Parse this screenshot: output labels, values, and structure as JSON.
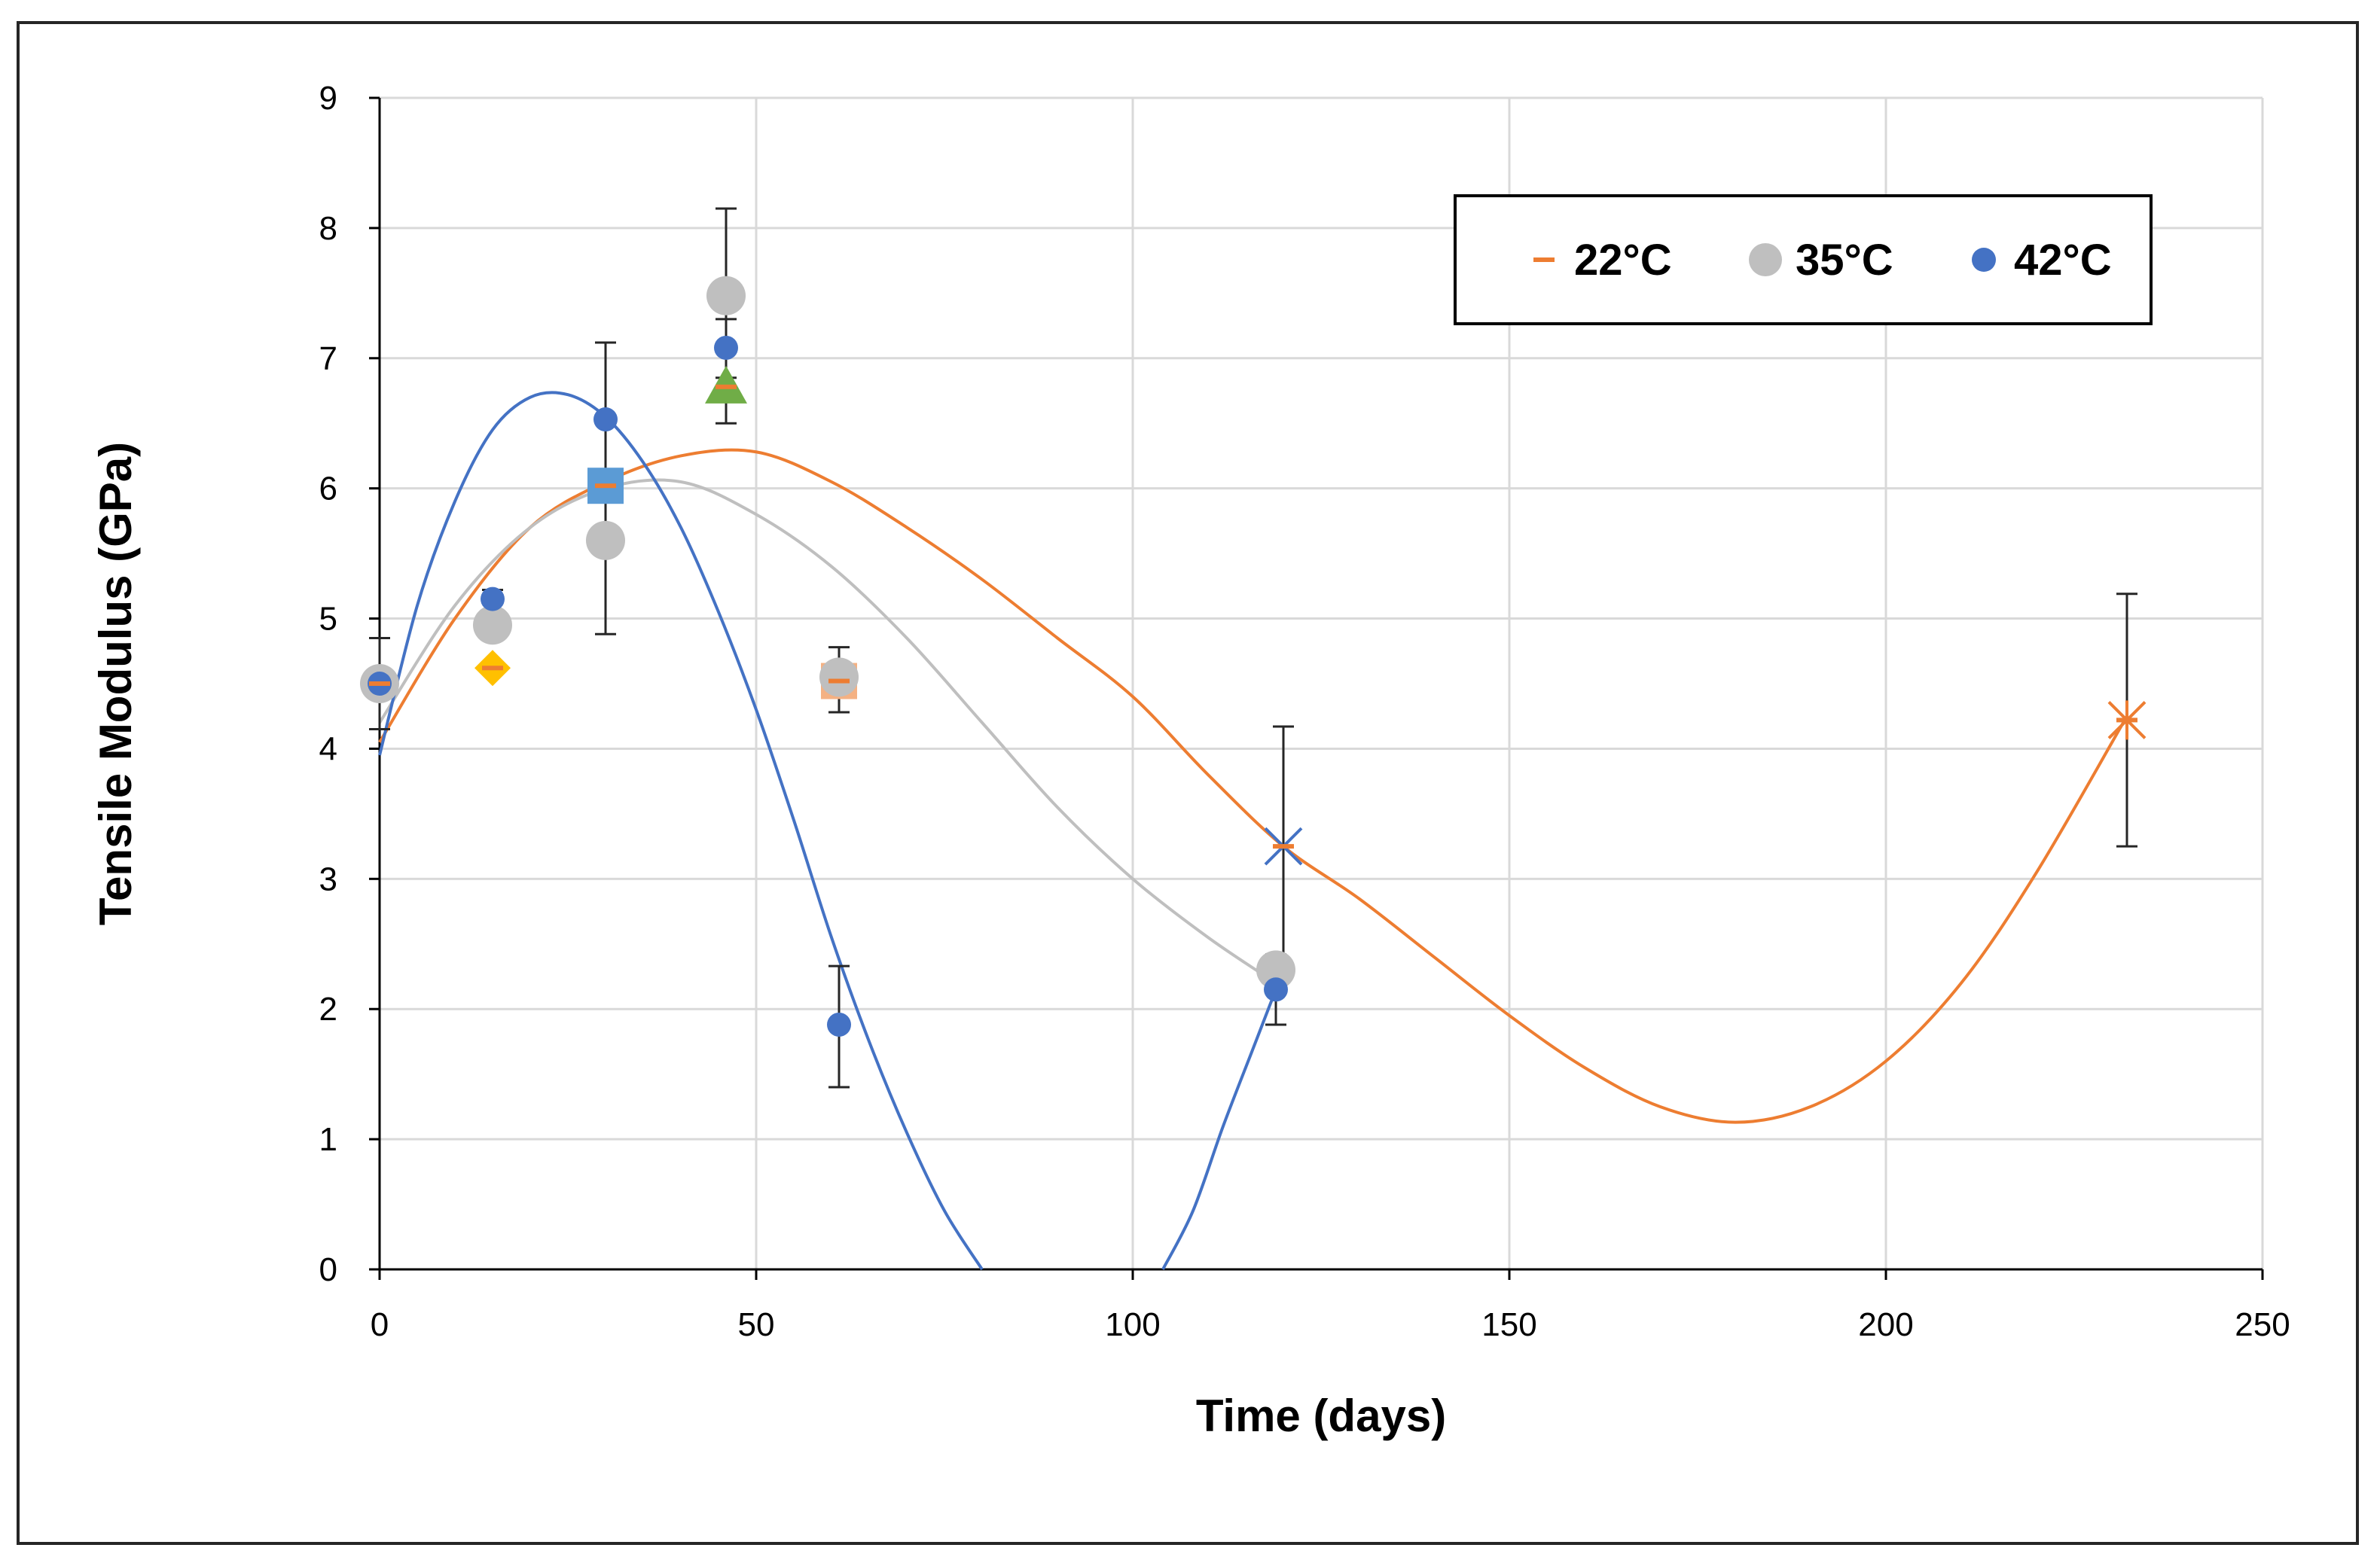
{
  "chart_data": {
    "type": "scatter",
    "title": "",
    "xlabel": "Time (days)",
    "ylabel": "Tensile Modulus (GPa)",
    "xlim": [
      0,
      250
    ],
    "ylim": [
      0,
      9
    ],
    "x_ticks": [
      0,
      50,
      100,
      150,
      200,
      250
    ],
    "y_ticks": [
      0,
      1,
      2,
      3,
      4,
      5,
      6,
      7,
      8,
      9
    ],
    "grid": true,
    "legend_position": "top-right",
    "legend": [
      {
        "label": "22°C",
        "marker": "dash",
        "color": "#ed7d31"
      },
      {
        "label": "35°C",
        "marker": "circle",
        "color": "#bfbfbf"
      },
      {
        "label": "42°C",
        "marker": "circle",
        "color": "#4472c4"
      }
    ],
    "series": [
      {
        "name": "22°C",
        "color": "#ed7d31",
        "marker": "dash",
        "points": [
          {
            "x": 0,
            "y": 4.5
          },
          {
            "x": 15,
            "y": 4.62
          },
          {
            "x": 30,
            "y": 6.02
          },
          {
            "x": 46,
            "y": 6.78
          },
          {
            "x": 61,
            "y": 4.52
          },
          {
            "x": 120,
            "y": 3.25
          },
          {
            "x": 232,
            "y": 4.22
          }
        ],
        "trendline": [
          [
            0,
            4.05
          ],
          [
            10,
            5.0
          ],
          [
            20,
            5.7
          ],
          [
            30,
            6.05
          ],
          [
            40,
            6.25
          ],
          [
            50,
            6.28
          ],
          [
            60,
            6.05
          ],
          [
            70,
            5.7
          ],
          [
            80,
            5.3
          ],
          [
            90,
            4.85
          ],
          [
            100,
            4.4
          ],
          [
            110,
            3.8
          ],
          [
            120,
            3.25
          ],
          [
            130,
            2.85
          ],
          [
            140,
            2.4
          ],
          [
            150,
            1.95
          ],
          [
            160,
            1.55
          ],
          [
            170,
            1.25
          ],
          [
            180,
            1.13
          ],
          [
            190,
            1.25
          ],
          [
            200,
            1.6
          ],
          [
            210,
            2.2
          ],
          [
            220,
            3.05
          ],
          [
            232,
            4.25
          ]
        ]
      },
      {
        "name": "35°C",
        "color": "#bfbfbf",
        "marker": "circle",
        "points": [
          {
            "x": 0,
            "y": 4.5
          },
          {
            "x": 15,
            "y": 4.95
          },
          {
            "x": 30,
            "y": 5.6
          },
          {
            "x": 46,
            "y": 7.48
          },
          {
            "x": 61,
            "y": 4.55
          },
          {
            "x": 119,
            "y": 2.3
          }
        ],
        "trendline": [
          [
            0,
            4.2
          ],
          [
            10,
            5.1
          ],
          [
            20,
            5.7
          ],
          [
            30,
            6.0
          ],
          [
            40,
            6.05
          ],
          [
            50,
            5.8
          ],
          [
            60,
            5.4
          ],
          [
            70,
            4.85
          ],
          [
            80,
            4.2
          ],
          [
            90,
            3.55
          ],
          [
            100,
            3.0
          ],
          [
            110,
            2.55
          ],
          [
            119,
            2.2
          ]
        ]
      },
      {
        "name": "42°C",
        "color": "#4472c4",
        "marker": "circle",
        "points": [
          {
            "x": 0,
            "y": 4.5
          },
          {
            "x": 15,
            "y": 5.15
          },
          {
            "x": 30,
            "y": 6.53
          },
          {
            "x": 46,
            "y": 7.08
          },
          {
            "x": 61,
            "y": 1.88
          },
          {
            "x": 119,
            "y": 2.15
          }
        ],
        "trendline": [
          [
            0,
            3.95
          ],
          [
            5,
            5.1
          ],
          [
            10,
            5.9
          ],
          [
            15,
            6.45
          ],
          [
            20,
            6.7
          ],
          [
            25,
            6.72
          ],
          [
            30,
            6.55
          ],
          [
            35,
            6.2
          ],
          [
            40,
            5.7
          ],
          [
            45,
            5.05
          ],
          [
            50,
            4.3
          ],
          [
            55,
            3.45
          ],
          [
            60,
            2.55
          ],
          [
            65,
            1.75
          ],
          [
            70,
            1.05
          ],
          [
            75,
            0.45
          ],
          [
            80,
            0.0
          ]
        ],
        "trendline2": [
          [
            104,
            0.0
          ],
          [
            108,
            0.45
          ],
          [
            112,
            1.1
          ],
          [
            116,
            1.7
          ],
          [
            119,
            2.15
          ]
        ]
      }
    ],
    "extra_markers": [
      {
        "x": 0,
        "y": 4.5,
        "shape": "circle",
        "color": "#4472c4",
        "error": 0.35
      },
      {
        "x": 15,
        "y": 4.62,
        "shape": "diamond",
        "color": "#ffc000",
        "error": 0.12
      },
      {
        "x": 30,
        "y": 6.02,
        "shape": "square",
        "color": "#5b9bd5",
        "error": 0.25
      },
      {
        "x": 46,
        "y": 6.78,
        "shape": "triangle",
        "color": "#70ad47",
        "error": 0.4
      },
      {
        "x": 61,
        "y": 4.52,
        "shape": "square",
        "color": "#f4b183",
        "error": 0.2
      },
      {
        "x": 120,
        "y": 3.25,
        "shape": "x",
        "color": "#4472c4",
        "error": 0.92
      },
      {
        "x": 232,
        "y": 4.22,
        "shape": "star",
        "color": "#ed7d31",
        "error": 0.97
      }
    ],
    "error_bars": [
      {
        "x": 30,
        "y": 6.0,
        "low": 4.88,
        "high": 7.12
      },
      {
        "x": 46,
        "y": 7.48,
        "low": 6.5,
        "high": 8.15
      },
      {
        "x": 46,
        "y": 7.08,
        "low": 6.85,
        "high": 7.3
      },
      {
        "x": 61,
        "y": 4.55,
        "low": 4.28,
        "high": 4.78
      },
      {
        "x": 61,
        "y": 1.88,
        "low": 1.4,
        "high": 2.33
      },
      {
        "x": 119,
        "y": 2.3,
        "low": 1.88,
        "high": 2.42
      },
      {
        "x": 15,
        "y": 5.15,
        "low": 5.05,
        "high": 5.22
      },
      {
        "x": 0,
        "y": 4.5,
        "low": 4.15,
        "high": 4.85
      }
    ]
  }
}
